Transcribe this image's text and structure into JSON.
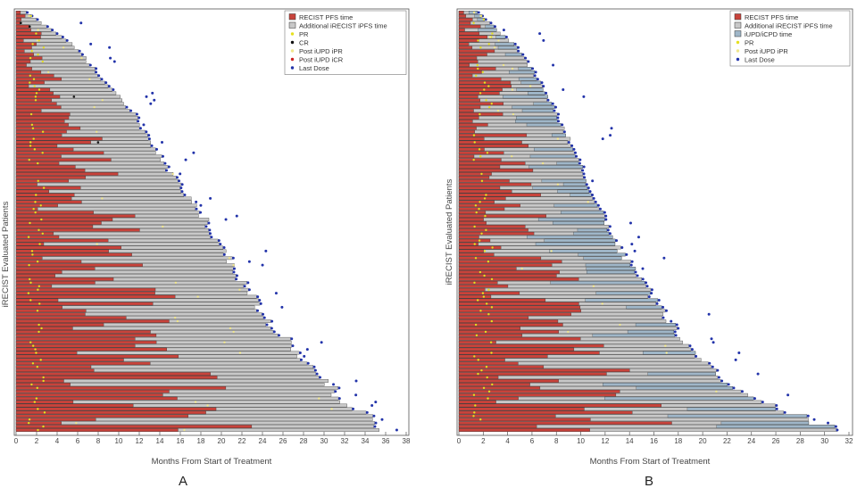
{
  "chart_data": [
    {
      "type": "swimmer",
      "panel_label": "A",
      "xlabel": "Months From Start of Treatment",
      "ylabel": "iRECIST Evaluated Patients",
      "xlim": [
        0,
        38
      ],
      "xticks": [
        0,
        2,
        4,
        6,
        8,
        10,
        12,
        14,
        16,
        18,
        20,
        22,
        24,
        26,
        28,
        30,
        32,
        34,
        36,
        38
      ],
      "n_patients": 120,
      "ranked_patient_rows": [
        1,
        10,
        20,
        30,
        40,
        50,
        60,
        70,
        80,
        90,
        100,
        110,
        120
      ],
      "total_time_months": [
        1.0,
        5.5,
        8.5,
        11.5,
        13.5,
        16.0,
        18.5,
        20.5,
        22.5,
        25.0,
        28.5,
        31.5,
        36.0
      ],
      "legend_position": "top-right",
      "legend": [
        {
          "label": "RECIST PFS time",
          "kind": "box",
          "color": "#c8433b"
        },
        {
          "label": "Additional iRECIST iPFS time",
          "kind": "box",
          "color": "#c8c8c8"
        },
        {
          "label": "PR",
          "kind": "dot",
          "color": "#e6e020"
        },
        {
          "label": "CR",
          "kind": "dot",
          "color": "#111111"
        },
        {
          "label": "Post iUPD iPR",
          "kind": "dot",
          "color": "#f0e68c"
        },
        {
          "label": "Post iUPD iCR",
          "kind": "dot",
          "color": "#cc2222"
        },
        {
          "label": "Last Dose",
          "kind": "dot",
          "color": "#2233aa"
        }
      ]
    },
    {
      "type": "swimmer",
      "panel_label": "B",
      "xlabel": "Months From Start of Treatment",
      "ylabel": "iRECIST Evaluated Patients",
      "xlim": [
        0,
        32
      ],
      "xticks": [
        0,
        2,
        4,
        6,
        8,
        10,
        12,
        14,
        16,
        18,
        20,
        22,
        24,
        26,
        28,
        30,
        32
      ],
      "n_patients": 120,
      "ranked_patient_rows": [
        1,
        10,
        20,
        30,
        40,
        50,
        60,
        70,
        80,
        90,
        100,
        110,
        120
      ],
      "total_time_months": [
        1.5,
        4.5,
        6.5,
        8.0,
        9.5,
        10.5,
        12.0,
        13.5,
        15.5,
        17.5,
        20.0,
        23.5,
        31.0
      ],
      "legend_position": "top-right",
      "legend": [
        {
          "label": "RECIST PFS time",
          "kind": "box",
          "color": "#c8433b"
        },
        {
          "label": "Additional iRECIST iPFS time",
          "kind": "box",
          "color": "#c8c8c8"
        },
        {
          "label": "iUPD/iCPD time",
          "kind": "box",
          "color": "#9fb6c8"
        },
        {
          "label": "PR",
          "kind": "dot",
          "color": "#e6e020"
        },
        {
          "label": "Post iUPD iPR",
          "kind": "dot",
          "color": "#f0e68c"
        },
        {
          "label": "Last Dose",
          "kind": "dot",
          "color": "#2233aa"
        }
      ]
    }
  ]
}
